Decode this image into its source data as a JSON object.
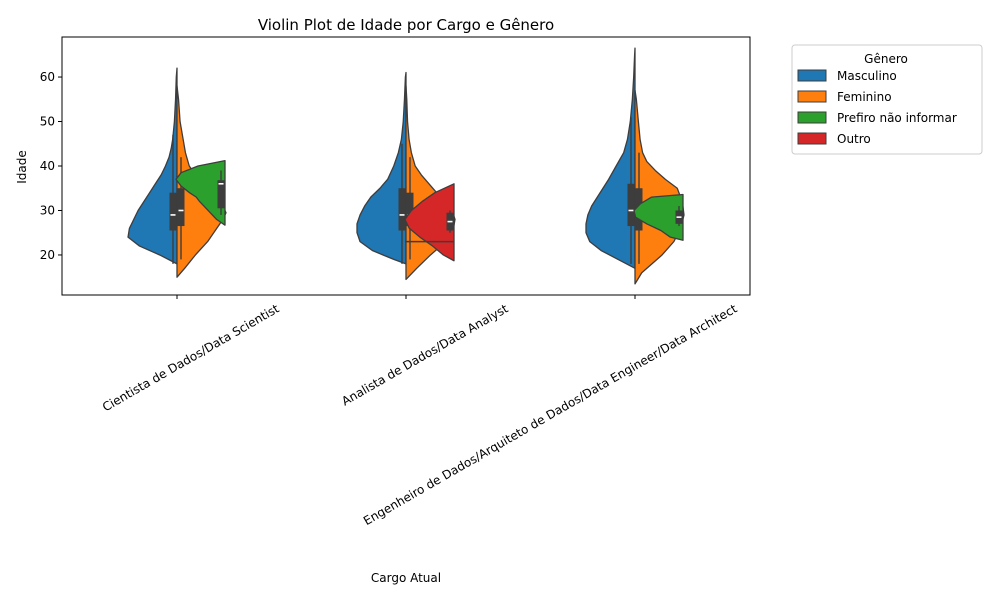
{
  "chart_data": {
    "type": "violin",
    "title": "Violin Plot de Idade por Cargo e Gênero",
    "xlabel": "Cargo Atual",
    "ylabel": "Idade",
    "ylim": [
      11,
      69
    ],
    "yticks": [
      20,
      30,
      40,
      50,
      60
    ],
    "grid": false,
    "legend": {
      "title": "Gênero",
      "placement": "outside-top-right",
      "entries": [
        "Masculino",
        "Feminino",
        "Prefiro não informar",
        "Outro"
      ]
    },
    "categories": [
      "Cientista de Dados/Data Scientist",
      "Analista de Dados/Data Analyst",
      "Engenheiro de Dados/Arquiteto de Dados/Data Engineer/Data Architect"
    ],
    "series": [
      {
        "name": "Masculino",
        "color": "#1f77b4",
        "groups": [
          {
            "category_index": 0,
            "side": "left",
            "profile": [
              [
                18,
                0
              ],
              [
                20,
                1.2
              ],
              [
                22,
                2.6
              ],
              [
                24,
                3.4
              ],
              [
                26,
                3.3
              ],
              [
                28,
                3.0
              ],
              [
                30,
                2.7
              ],
              [
                32,
                2.3
              ],
              [
                34,
                1.9
              ],
              [
                36,
                1.5
              ],
              [
                38,
                1.1
              ],
              [
                40,
                0.8
              ],
              [
                42,
                0.55
              ],
              [
                44,
                0.4
              ],
              [
                46,
                0.3
              ],
              [
                50,
                0.18
              ],
              [
                55,
                0.1
              ],
              [
                60,
                0.05
              ],
              [
                62,
                0
              ]
            ],
            "box": {
              "q1": 25.5,
              "median": 29,
              "q3": 34,
              "whisker_low": 18,
              "whisker_high": 47
            }
          },
          {
            "category_index": 1,
            "side": "left",
            "profile": [
              [
                18,
                0
              ],
              [
                19,
                0.8
              ],
              [
                21,
                2.2
              ],
              [
                23,
                3.0
              ],
              [
                25,
                3.2
              ],
              [
                27,
                3.2
              ],
              [
                29,
                3.0
              ],
              [
                31,
                2.7
              ],
              [
                33,
                2.3
              ],
              [
                35,
                1.7
              ],
              [
                37,
                1.2
              ],
              [
                40,
                0.8
              ],
              [
                43,
                0.5
              ],
              [
                46,
                0.3
              ],
              [
                50,
                0.18
              ],
              [
                55,
                0.1
              ],
              [
                60,
                0.04
              ],
              [
                61,
                0
              ]
            ],
            "box": {
              "q1": 25.5,
              "median": 29,
              "q3": 35,
              "whisker_low": 18,
              "whisker_high": 45
            }
          },
          {
            "category_index": 2,
            "side": "left",
            "profile": [
              [
                17,
                0
              ],
              [
                19,
                0.9
              ],
              [
                21,
                1.8
              ],
              [
                23,
                2.4
              ],
              [
                25,
                2.6
              ],
              [
                27,
                2.6
              ],
              [
                29,
                2.5
              ],
              [
                31,
                2.3
              ],
              [
                33,
                2.0
              ],
              [
                35,
                1.7
              ],
              [
                37,
                1.4
              ],
              [
                40,
                1.0
              ],
              [
                43,
                0.6
              ],
              [
                46,
                0.4
              ],
              [
                50,
                0.25
              ],
              [
                55,
                0.14
              ],
              [
                60,
                0.07
              ],
              [
                65,
                0.02
              ],
              [
                66.5,
                0
              ]
            ],
            "box": {
              "q1": 26.5,
              "median": 30,
              "q3": 36,
              "whisker_low": 18,
              "whisker_high": 51
            }
          }
        ]
      },
      {
        "name": "Feminino",
        "color": "#ff7f0e",
        "groups": [
          {
            "category_index": 0,
            "side": "right",
            "profile": [
              [
                15,
                0
              ],
              [
                17,
                0.5
              ],
              [
                20,
                1.2
              ],
              [
                23,
                2.0
              ],
              [
                26,
                2.6
              ],
              [
                28,
                3.0
              ],
              [
                29.5,
                3.2
              ],
              [
                31,
                3.0
              ],
              [
                33,
                2.5
              ],
              [
                35,
                1.9
              ],
              [
                38,
                1.2
              ],
              [
                40,
                0.8
              ],
              [
                43,
                0.55
              ],
              [
                46,
                0.4
              ],
              [
                50,
                0.2
              ],
              [
                55,
                0.1
              ],
              [
                58,
                0
              ]
            ],
            "box": {
              "q1": 26.5,
              "median": 30,
              "q3": 35,
              "whisker_low": 19,
              "whisker_high": 42
            }
          },
          {
            "category_index": 1,
            "side": "right",
            "profile": [
              [
                14.5,
                0
              ],
              [
                17,
                0.7
              ],
              [
                20,
                1.6
              ],
              [
                23,
                2.6
              ],
              [
                26,
                3.1
              ],
              [
                28,
                3.2
              ],
              [
                30,
                3.0
              ],
              [
                32,
                2.5
              ],
              [
                34,
                2.0
              ],
              [
                36,
                1.5
              ],
              [
                38,
                1.0
              ],
              [
                40,
                0.6
              ],
              [
                43,
                0.35
              ],
              [
                46,
                0.2
              ],
              [
                50,
                0.1
              ],
              [
                55,
                0.05
              ],
              [
                58,
                0
              ]
            ],
            "box": {
              "q1": 26.5,
              "median": 29,
              "q3": 34,
              "whisker_low": 19,
              "whisker_high": 42
            }
          },
          {
            "category_index": 2,
            "side": "right",
            "profile": [
              [
                13.5,
                0
              ],
              [
                16,
                0.4
              ],
              [
                18,
                1.0
              ],
              [
                20,
                1.6
              ],
              [
                23,
                2.3
              ],
              [
                26,
                2.7
              ],
              [
                29,
                2.9
              ],
              [
                32,
                2.8
              ],
              [
                35,
                2.5
              ],
              [
                37,
                1.8
              ],
              [
                39,
                1.2
              ],
              [
                41,
                0.7
              ],
              [
                43,
                0.45
              ],
              [
                46,
                0.3
              ],
              [
                50,
                0.2
              ],
              [
                55,
                0.08
              ],
              [
                57,
                0
              ]
            ],
            "box": {
              "q1": 25.5,
              "median": 29,
              "q3": 35,
              "whisker_low": 18,
              "whisker_high": 43
            }
          }
        ]
      },
      {
        "name": "Prefiro não informar",
        "color": "#2ca02c",
        "groups": [
          {
            "category_index": 0,
            "side": "left",
            "profile": [
              [
                26.7,
                0
              ],
              [
                28,
                0.5
              ],
              [
                30,
                1.0
              ],
              [
                32,
                1.5
              ],
              [
                33,
                1.7
              ],
              [
                34,
                2.1
              ],
              [
                35.5,
                2.6
              ],
              [
                37,
                2.9
              ],
              [
                38.5,
                2.6
              ],
              [
                40,
                1.6
              ],
              [
                41.2,
                0
              ]
            ],
            "box": {
              "q1": 30.5,
              "median": 36,
              "q3": 36.8,
              "whisker_low": 29,
              "whisker_high": 39
            }
          },
          {
            "category_index": 2,
            "side": "left",
            "profile": [
              [
                23.3,
                0
              ],
              [
                24,
                0.8
              ],
              [
                25.5,
                1.4
              ],
              [
                27,
                2.3
              ],
              [
                28.5,
                3.0
              ],
              [
                30,
                3.1
              ],
              [
                31.5,
                2.7
              ],
              [
                33,
                2.0
              ],
              [
                33.6,
                0
              ]
            ],
            "box": {
              "q1": 27,
              "median": 28.5,
              "q3": 30,
              "whisker_low": 26.5,
              "whisker_high": 31
            }
          }
        ]
      },
      {
        "name": "Outro",
        "color": "#d62728",
        "groups": [
          {
            "category_index": 1,
            "side": "left",
            "profile": [
              [
                18.7,
                0
              ],
              [
                20,
                0.5
              ],
              [
                22,
                1.0
              ],
              [
                24,
                1.6
              ],
              [
                26,
                2.1
              ],
              [
                28,
                2.3
              ],
              [
                30,
                2.0
              ],
              [
                32,
                1.5
              ],
              [
                34,
                0.9
              ],
              [
                36,
                0
              ]
            ],
            "box": {
              "q1": 25.5,
              "median": 27.5,
              "q3": 29.5,
              "whisker_low": 25,
              "whisker_high": 30
            }
          },
          {
            "category_index": 1,
            "side": "left",
            "note_type": "single-value",
            "profile": [
              [
                23,
                0
              ],
              [
                23,
                0
              ]
            ],
            "box": {
              "q1": 23,
              "median": 23,
              "q3": 23,
              "whisker_low": 23,
              "whisker_high": 23
            }
          }
        ]
      }
    ]
  }
}
